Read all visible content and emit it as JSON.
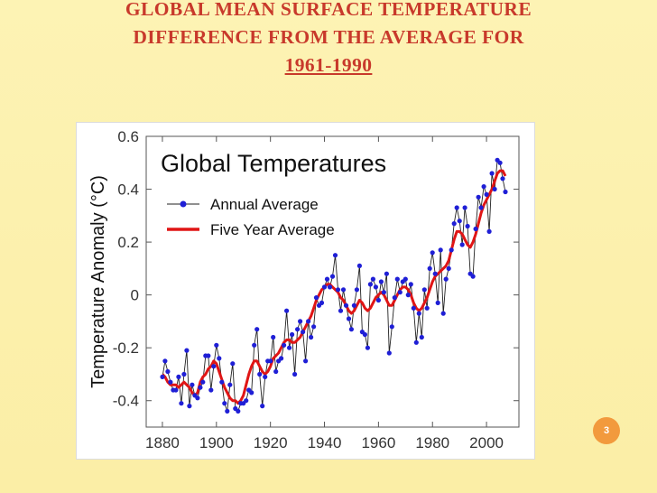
{
  "slide": {
    "title_lines": [
      "GLOBAL MEAN SURFACE TEMPERATURE",
      "DIFFERENCE FROM THE AVERAGE  FOR",
      "1961-1990"
    ],
    "page_number": "3",
    "colors": {
      "background": "#fdf3b4",
      "title": "#c8392b",
      "badge": "#f29a3d"
    }
  },
  "chart_data": {
    "type": "line",
    "title": "Global Temperatures",
    "xlabel": "",
    "ylabel": "Temperature Anomaly (°C)",
    "xlim": [
      1874,
      2012
    ],
    "ylim": [
      -0.5,
      0.6
    ],
    "x_ticks": [
      1880,
      1900,
      1920,
      1940,
      1960,
      1980,
      2000
    ],
    "x_tick_labels": [
      "1880",
      "1900",
      "1920",
      "1940",
      "1960",
      "1980",
      "2000"
    ],
    "y_ticks": [
      0.6,
      0.4,
      0.2,
      0,
      -0.2,
      -0.4
    ],
    "y_tick_labels": [
      "0.6",
      "0.4",
      "0.2",
      "0",
      "-0.2",
      "-0.4"
    ],
    "legend": {
      "position": "top-left",
      "annual_label": "Annual Average",
      "five_year_label": "Five Year Average"
    },
    "colors": {
      "annual_line": "#222222",
      "annual_marker": "#1f1fd6",
      "five_year": "#e01515"
    },
    "years_start": 1880,
    "annual": [
      -0.31,
      -0.25,
      -0.29,
      -0.33,
      -0.36,
      -0.36,
      -0.31,
      -0.41,
      -0.3,
      -0.21,
      -0.42,
      -0.34,
      -0.38,
      -0.39,
      -0.35,
      -0.33,
      -0.23,
      -0.23,
      -0.36,
      -0.27,
      -0.19,
      -0.24,
      -0.33,
      -0.41,
      -0.44,
      -0.34,
      -0.26,
      -0.43,
      -0.44,
      -0.41,
      -0.41,
      -0.4,
      -0.36,
      -0.37,
      -0.19,
      -0.13,
      -0.3,
      -0.42,
      -0.31,
      -0.25,
      -0.25,
      -0.16,
      -0.29,
      -0.25,
      -0.24,
      -0.19,
      -0.06,
      -0.2,
      -0.15,
      -0.3,
      -0.13,
      -0.1,
      -0.14,
      -0.25,
      -0.1,
      -0.16,
      -0.12,
      -0.01,
      -0.04,
      -0.03,
      0.03,
      0.06,
      0.03,
      0.07,
      0.15,
      0.02,
      -0.06,
      0.02,
      -0.04,
      -0.09,
      -0.13,
      -0.04,
      0.02,
      0.11,
      -0.14,
      -0.15,
      -0.2,
      0.04,
      0.06,
      0.03,
      -0.02,
      0.05,
      0.01,
      0.08,
      -0.22,
      -0.12,
      -0.01,
      0.06,
      0.01,
      0.05,
      0.06,
      0.0,
      0.04,
      -0.05,
      -0.18,
      -0.07,
      -0.16,
      0.02,
      -0.05,
      0.1,
      0.16,
      0.08,
      -0.03,
      0.17,
      -0.07,
      0.06,
      0.1,
      0.17,
      0.27,
      0.33,
      0.28,
      0.19,
      0.33,
      0.26,
      0.08,
      0.07,
      0.25,
      0.37,
      0.33,
      0.41,
      0.38,
      0.24,
      0.46,
      0.4,
      0.51,
      0.5,
      0.44,
      0.39
    ],
    "five_year": [
      -0.3,
      -0.31,
      -0.33,
      -0.34,
      -0.34,
      -0.34,
      -0.35,
      -0.34,
      -0.33,
      -0.34,
      -0.35,
      -0.37,
      -0.38,
      -0.37,
      -0.33,
      -0.31,
      -0.3,
      -0.28,
      -0.27,
      -0.25,
      -0.26,
      -0.29,
      -0.32,
      -0.35,
      -0.37,
      -0.39,
      -0.4,
      -0.4,
      -0.41,
      -0.4,
      -0.38,
      -0.34,
      -0.3,
      -0.27,
      -0.25,
      -0.25,
      -0.27,
      -0.29,
      -0.3,
      -0.29,
      -0.27,
      -0.24,
      -0.23,
      -0.22,
      -0.2,
      -0.18,
      -0.17,
      -0.17,
      -0.18,
      -0.18,
      -0.17,
      -0.16,
      -0.14,
      -0.12,
      -0.1,
      -0.08,
      -0.05,
      -0.02,
      0.0,
      0.02,
      0.03,
      0.04,
      0.04,
      0.03,
      0.02,
      0.01,
      -0.01,
      -0.02,
      -0.04,
      -0.06,
      -0.07,
      -0.06,
      -0.04,
      -0.02,
      -0.03,
      -0.05,
      -0.06,
      -0.05,
      -0.03,
      -0.01,
      0.0,
      0.01,
      0.0,
      -0.02,
      -0.04,
      -0.04,
      -0.02,
      0.0,
      0.02,
      0.03,
      0.03,
      0.02,
      0.0,
      -0.03,
      -0.05,
      -0.06,
      -0.05,
      -0.03,
      -0.01,
      0.02,
      0.05,
      0.07,
      0.08,
      0.09,
      0.1,
      0.11,
      0.13,
      0.17,
      0.21,
      0.24,
      0.24,
      0.23,
      0.21,
      0.19,
      0.18,
      0.2,
      0.23,
      0.27,
      0.31,
      0.34,
      0.36,
      0.38,
      0.4,
      0.43,
      0.46,
      0.47,
      0.47,
      0.45
    ]
  }
}
